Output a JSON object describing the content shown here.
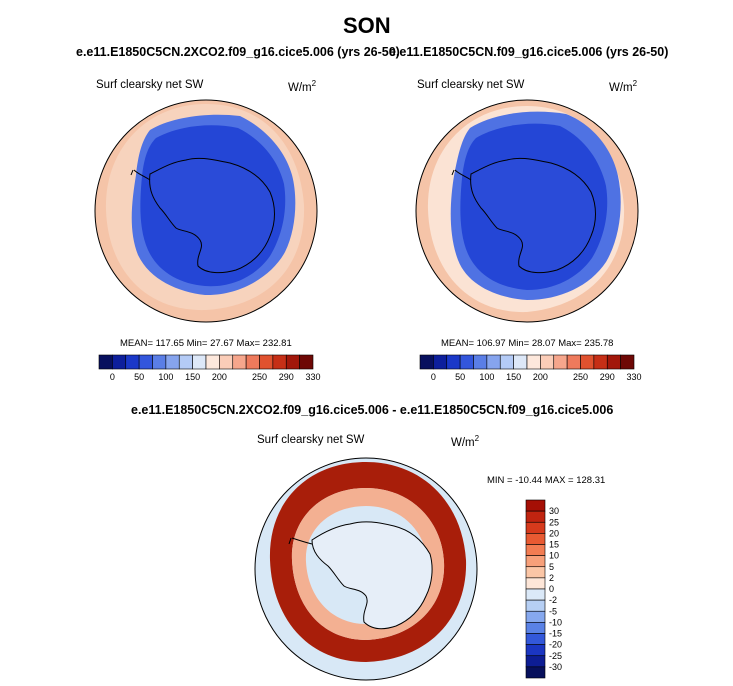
{
  "page": {
    "title": "SON",
    "diff_title": "e.e11.E1850C5CN.2XCO2.f09_g16.cice5.006 - e.e11.E1850C5CN.f09_g16.cice5.006"
  },
  "colors": {
    "coast": "#000000",
    "ocean_far": "#ffffff",
    "open_ocean_warm": "#f5c4a8",
    "ice_edge": "#4f72e3",
    "ice_pack": "#2446d6",
    "ice_dark": "#1f3ec7",
    "land_ice": "#2a4bd8",
    "diff_ocean": "#d8e8f6",
    "diff_ring": "#a81e0a",
    "diff_ring_light": "#f3b092",
    "diff_land": "#e6eef8"
  },
  "chart_data": [
    {
      "type": "heatmap",
      "projection": "south-polar-stereographic",
      "title": "e.e11.E1850C5CN.2XCO2.f09_g16.cice5.006 (yrs 26-50)",
      "variable": "Surf clearsky net SW",
      "units": "W/m",
      "units_sup": "2",
      "stats": {
        "mean": "117.65",
        "min": "27.67",
        "max": "232.81"
      },
      "stats_text": "MEAN= 117.65   Min=  27.67   Max= 232.81",
      "colorbar": {
        "labels": [
          "0",
          "50",
          "100",
          "150",
          "200",
          "250",
          "290",
          "330"
        ],
        "colors": [
          "#08105e",
          "#0d1f9c",
          "#1a38c8",
          "#3356dc",
          "#5a7ee6",
          "#86a4ee",
          "#b4cbf6",
          "#dde8f8",
          "#fde8dc",
          "#fbcdb8",
          "#f6a68c",
          "#ee7a5c",
          "#e0522f",
          "#c62f16",
          "#a2170a",
          "#6e0805"
        ]
      }
    },
    {
      "type": "heatmap",
      "projection": "south-polar-stereographic",
      "title": "e.e11.E1850C5CN.f09_g16.cice5.006 (yrs 26-50)",
      "variable": "Surf clearsky net SW",
      "units": "W/m",
      "units_sup": "2",
      "stats": {
        "mean": "106.97",
        "min": "28.07",
        "max": "235.78"
      },
      "stats_text": "MEAN= 106.97   Min=  28.07   Max= 235.78",
      "colorbar": {
        "labels": [
          "0",
          "50",
          "100",
          "150",
          "200",
          "250",
          "290",
          "330"
        ],
        "colors": [
          "#08105e",
          "#0d1f9c",
          "#1a38c8",
          "#3356dc",
          "#5a7ee6",
          "#86a4ee",
          "#b4cbf6",
          "#dde8f8",
          "#fde8dc",
          "#fbcdb8",
          "#f6a68c",
          "#ee7a5c",
          "#e0522f",
          "#c62f16",
          "#a2170a",
          "#6e0805"
        ]
      }
    },
    {
      "type": "heatmap",
      "projection": "south-polar-stereographic",
      "variable": "Surf clearsky net SW",
      "units": "W/m",
      "units_sup": "2",
      "stats": {
        "min": "-10.44",
        "max": "128.31"
      },
      "stats_text": "MIN = -10.44 MAX = 128.31",
      "colorbar": {
        "orientation": "vertical",
        "labels": [
          "30",
          "25",
          "20",
          "15",
          "10",
          "5",
          "2",
          "0",
          "-2",
          "-5",
          "-10",
          "-15",
          "-20",
          "-25",
          "-30"
        ],
        "colors": [
          "#a50f05",
          "#c02410",
          "#d63a1c",
          "#e85a32",
          "#f27c52",
          "#f7a07a",
          "#fbc6a6",
          "#fde6d8",
          "#dbe9f8",
          "#b6cff4",
          "#86a8ee",
          "#5a82e6",
          "#3358da",
          "#1b36c2",
          "#0d1d94",
          "#07105c"
        ]
      }
    }
  ]
}
